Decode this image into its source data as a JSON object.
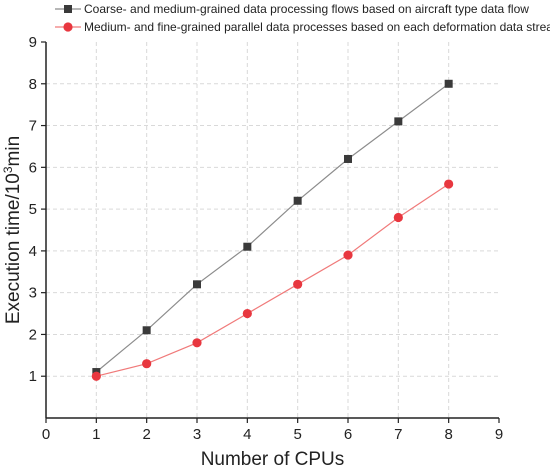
{
  "chart_data": {
    "type": "line",
    "xlabel": "Number of CPUs",
    "ylabel_main": "Execution time/10",
    "ylabel_sup": "3",
    "ylabel_tail": "min",
    "xlim": [
      0,
      9
    ],
    "ylim": [
      0,
      9
    ],
    "y_ticks_min": 1,
    "grid": true,
    "legend_position": "top-left",
    "x": [
      1,
      2,
      3,
      4,
      5,
      6,
      7,
      8
    ],
    "series": [
      {
        "name": "Coarse- and medium-grained data processing flows based on aircraft type data flow",
        "values": [
          1.1,
          2.1,
          3.2,
          4.1,
          5.2,
          6.2,
          7.1,
          8.0
        ],
        "marker": "square",
        "marker_color": "#3a3a3a",
        "line_color": "#8c8c8c"
      },
      {
        "name": "Medium- and fine-grained parallel data processes based on each deformation data stream",
        "values": [
          1.0,
          1.3,
          1.8,
          2.5,
          3.2,
          3.9,
          4.8,
          5.6
        ],
        "marker": "circle",
        "marker_color": "#e8373f",
        "line_color": "#f07a7a"
      }
    ]
  }
}
